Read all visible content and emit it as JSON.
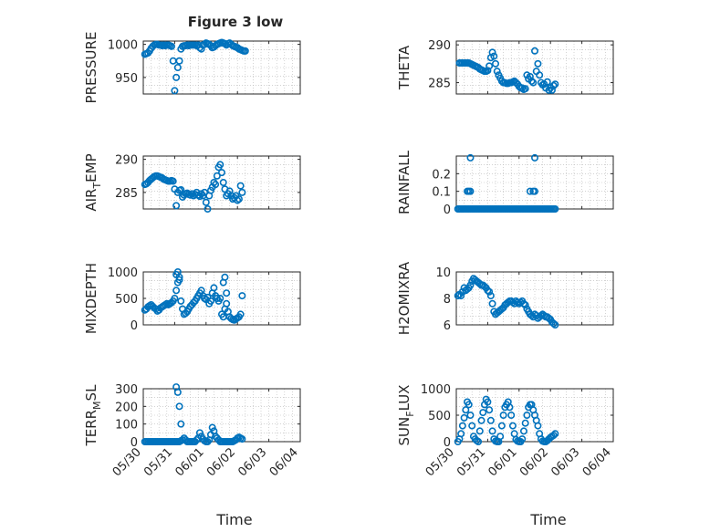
{
  "figure": {
    "title": "Figure 3 low",
    "xlabel": "Time",
    "x_ticks": [
      "05/30",
      "05/31",
      "06/01",
      "06/02",
      "06/03",
      "06/04"
    ],
    "marker_color": "#0072BD",
    "grid": "dotted minor"
  },
  "chart_data": [
    {
      "type": "scatter",
      "id": "PRESSURE",
      "ylabel": "PRESSURE",
      "ylabel_sub": "",
      "ylim": [
        925,
        1005
      ],
      "yticks": [
        950,
        1000
      ],
      "x": [
        0.05,
        0.1,
        0.15,
        0.2,
        0.25,
        0.3,
        0.35,
        0.4,
        0.45,
        0.5,
        0.55,
        0.6,
        0.65,
        0.7,
        0.75,
        0.8,
        0.85,
        0.9,
        0.95,
        1.0,
        1.05,
        1.1,
        1.15,
        1.2,
        1.25,
        1.3,
        1.35,
        1.4,
        1.45,
        1.5,
        1.55,
        1.6,
        1.65,
        1.7,
        1.75,
        1.8,
        1.85,
        1.9,
        1.95,
        2.0,
        2.05,
        2.1,
        2.15,
        2.2,
        2.25,
        2.3,
        2.35,
        2.4,
        2.45,
        2.5,
        2.55,
        2.6,
        2.65,
        2.7,
        2.75,
        2.8,
        2.85,
        2.9,
        2.95,
        3.0,
        3.05,
        3.1,
        3.15,
        3.2,
        3.25
      ],
      "y": [
        985,
        986,
        987,
        990,
        994,
        997,
        999,
        1000,
        1000,
        999,
        999,
        998,
        999,
        998,
        999,
        999,
        998,
        997,
        975,
        930,
        950,
        965,
        975,
        993,
        997,
        998,
        998,
        999,
        998,
        999,
        999,
        999,
        999,
        998,
        999,
        995,
        993,
        999,
        1000,
        1002,
        1001,
        1000,
        998,
        995,
        996,
        998,
        1000,
        1001,
        1002,
        1003,
        1002,
        1001,
        999,
        1001,
        1002,
        1000,
        998,
        997,
        996,
        995,
        993,
        992,
        991,
        990,
        990
      ]
    },
    {
      "type": "scatter",
      "id": "THETA",
      "ylabel": "THETA",
      "ylabel_sub": "",
      "ylim": [
        283.5,
        290.5
      ],
      "yticks": [
        285,
        290
      ],
      "x": [
        0.1,
        0.15,
        0.2,
        0.25,
        0.3,
        0.35,
        0.4,
        0.45,
        0.5,
        0.55,
        0.6,
        0.65,
        0.7,
        0.75,
        0.8,
        0.85,
        0.9,
        0.95,
        1.0,
        1.05,
        1.1,
        1.15,
        1.2,
        1.25,
        1.3,
        1.35,
        1.4,
        1.45,
        1.5,
        1.55,
        1.6,
        1.65,
        1.7,
        1.75,
        1.8,
        1.85,
        1.9,
        1.95,
        2.0,
        2.05,
        2.1,
        2.15,
        2.2,
        2.25,
        2.3,
        2.35,
        2.4,
        2.45,
        2.5,
        2.55,
        2.6,
        2.65,
        2.7,
        2.75,
        2.8,
        2.85,
        2.9,
        2.95,
        3.0,
        3.05,
        3.1,
        3.15
      ],
      "y": [
        287.6,
        287.6,
        287.6,
        287.6,
        287.6,
        287.6,
        287.6,
        287.5,
        287.4,
        287.3,
        287.2,
        287.1,
        287.0,
        286.8,
        286.7,
        286.6,
        286.5,
        286.5,
        286.6,
        287.2,
        288.3,
        289.0,
        288.5,
        287.5,
        286.5,
        286.0,
        285.6,
        285.2,
        285.0,
        285.0,
        284.9,
        284.9,
        285.0,
        285.0,
        285.1,
        285.2,
        285.0,
        284.8,
        284.5,
        284.3,
        284.3,
        284.1,
        284.2,
        286.0,
        285.5,
        285.8,
        285.2,
        285.0,
        289.2,
        286.5,
        287.5,
        286.0,
        285.0,
        284.7,
        284.8,
        284.3,
        285.1,
        284.0,
        284.3,
        284.0,
        284.6,
        284.8
      ]
    },
    {
      "type": "scatter",
      "id": "AIR_TEMP",
      "ylabel": "AIR",
      "ylabel_sub": "T",
      "ylabel_rest": "EMP",
      "ylim": [
        282.5,
        290.5
      ],
      "yticks": [
        285,
        290
      ],
      "x": [
        0.05,
        0.1,
        0.15,
        0.2,
        0.25,
        0.3,
        0.35,
        0.4,
        0.45,
        0.5,
        0.55,
        0.6,
        0.65,
        0.7,
        0.75,
        0.8,
        0.85,
        0.9,
        0.95,
        1.0,
        1.05,
        1.1,
        1.15,
        1.2,
        1.25,
        1.3,
        1.35,
        1.4,
        1.45,
        1.5,
        1.55,
        1.6,
        1.65,
        1.7,
        1.75,
        1.8,
        1.85,
        1.9,
        1.95,
        2.0,
        2.05,
        2.1,
        2.15,
        2.2,
        2.25,
        2.3,
        2.35,
        2.4,
        2.45,
        2.5,
        2.55,
        2.6,
        2.65,
        2.7,
        2.75,
        2.8,
        2.85,
        2.9,
        2.95,
        3.0,
        3.05,
        3.1,
        3.15
      ],
      "y": [
        286.2,
        286.3,
        286.5,
        286.8,
        287.0,
        287.2,
        287.4,
        287.5,
        287.5,
        287.4,
        287.3,
        287.2,
        287.0,
        286.9,
        286.8,
        286.7,
        286.7,
        286.8,
        286.7,
        285.5,
        283.0,
        285.0,
        285.3,
        285.4,
        284.3,
        284.6,
        284.8,
        284.9,
        284.7,
        284.6,
        284.8,
        284.5,
        284.7,
        285.0,
        284.6,
        284.4,
        284.8,
        284.5,
        285.0,
        283.5,
        282.5,
        284.5,
        285.3,
        285.8,
        286.5,
        286.2,
        287.5,
        288.8,
        289.2,
        288.0,
        286.5,
        285.5,
        284.5,
        284.8,
        285.2,
        284.5,
        284.0,
        284.2,
        284.5,
        283.8,
        284.0,
        286.0,
        285.0
      ]
    },
    {
      "type": "scatter",
      "id": "RAINFALL",
      "ylabel": "RAINFALL",
      "ylabel_sub": "",
      "ylim": [
        0,
        0.3
      ],
      "yticks": [
        0,
        0.1,
        0.2
      ],
      "ytick_labels": [
        "0",
        "0.1",
        "0.2"
      ],
      "x": [
        0.05,
        0.1,
        0.15,
        0.2,
        0.25,
        0.3,
        0.35,
        0.4,
        0.45,
        0.5,
        0.55,
        0.6,
        0.65,
        0.7,
        0.75,
        0.8,
        0.85,
        0.9,
        0.95,
        1.0,
        1.05,
        1.1,
        1.15,
        1.2,
        1.25,
        1.3,
        1.35,
        1.4,
        1.45,
        1.5,
        1.55,
        1.6,
        1.65,
        1.7,
        1.75,
        1.8,
        1.85,
        1.9,
        1.95,
        2.0,
        2.05,
        2.1,
        2.15,
        2.2,
        2.25,
        2.3,
        2.35,
        2.4,
        2.45,
        2.5,
        2.55,
        2.6,
        2.65,
        2.7,
        2.75,
        2.8,
        2.85,
        2.9,
        2.95,
        3.0,
        3.05,
        3.1,
        3.15,
        0.35,
        0.4,
        0.45,
        0.45,
        2.35,
        2.45,
        2.5,
        2.5
      ],
      "y": [
        0,
        0,
        0,
        0,
        0,
        0,
        0,
        0,
        0,
        0,
        0,
        0,
        0,
        0,
        0,
        0,
        0,
        0,
        0,
        0,
        0,
        0,
        0,
        0,
        0,
        0,
        0,
        0,
        0,
        0,
        0,
        0,
        0,
        0,
        0,
        0,
        0,
        0,
        0,
        0,
        0,
        0,
        0,
        0,
        0,
        0,
        0,
        0,
        0,
        0,
        0,
        0,
        0,
        0,
        0,
        0,
        0,
        0,
        0,
        0,
        0,
        0,
        0,
        0.1,
        0.1,
        0.1,
        0.29,
        0.1,
        0.1,
        0.1,
        0.29
      ]
    },
    {
      "type": "scatter",
      "id": "MIXDEPTH",
      "ylabel": "MIXDEPTH",
      "ylabel_sub": "",
      "ylim": [
        0,
        1000
      ],
      "yticks": [
        0,
        500,
        1000
      ],
      "x": [
        0.05,
        0.1,
        0.15,
        0.2,
        0.25,
        0.3,
        0.35,
        0.4,
        0.45,
        0.5,
        0.55,
        0.6,
        0.65,
        0.7,
        0.75,
        0.8,
        0.85,
        0.9,
        0.95,
        1.0,
        1.05,
        1.1,
        1.15,
        1.2,
        1.25,
        1.3,
        1.35,
        1.4,
        1.45,
        1.5,
        1.55,
        1.6,
        1.65,
        1.7,
        1.75,
        1.8,
        1.85,
        1.9,
        1.95,
        2.0,
        2.05,
        2.1,
        2.15,
        2.2,
        2.25,
        2.3,
        2.35,
        2.4,
        2.45,
        2.5,
        2.55,
        2.6,
        2.65,
        2.7,
        2.75,
        2.8,
        2.85,
        2.9,
        2.95,
        3.0,
        3.05,
        3.1,
        3.15,
        1.05,
        1.1,
        1.15,
        2.55,
        2.6,
        2.65
      ],
      "y": [
        280,
        300,
        340,
        360,
        380,
        350,
        320,
        300,
        260,
        280,
        320,
        340,
        360,
        380,
        400,
        380,
        400,
        420,
        450,
        500,
        650,
        800,
        850,
        450,
        300,
        200,
        220,
        250,
        300,
        350,
        380,
        420,
        450,
        500,
        550,
        600,
        650,
        550,
        500,
        480,
        520,
        400,
        450,
        600,
        700,
        550,
        500,
        450,
        500,
        200,
        150,
        300,
        400,
        250,
        150,
        120,
        100,
        90,
        110,
        130,
        150,
        200,
        550,
        950,
        1000,
        900,
        800,
        900,
        600
      ]
    },
    {
      "type": "scatter",
      "id": "H2OMIXRA",
      "ylabel": "H2OMIXRA",
      "ylabel_sub": "",
      "ylim": [
        6,
        10
      ],
      "yticks": [
        6,
        8,
        10
      ],
      "x": [
        0.05,
        0.1,
        0.15,
        0.2,
        0.25,
        0.3,
        0.35,
        0.4,
        0.45,
        0.5,
        0.55,
        0.6,
        0.65,
        0.7,
        0.75,
        0.8,
        0.85,
        0.9,
        0.95,
        1.0,
        1.05,
        1.1,
        1.15,
        1.2,
        1.25,
        1.3,
        1.35,
        1.4,
        1.45,
        1.5,
        1.55,
        1.6,
        1.65,
        1.7,
        1.75,
        1.8,
        1.85,
        1.9,
        1.95,
        2.0,
        2.05,
        2.1,
        2.15,
        2.2,
        2.25,
        2.3,
        2.35,
        2.4,
        2.45,
        2.5,
        2.55,
        2.6,
        2.65,
        2.7,
        2.75,
        2.8,
        2.85,
        2.9,
        2.95,
        3.0,
        3.05,
        3.1,
        3.15
      ],
      "y": [
        8.2,
        8.3,
        8.2,
        8.5,
        8.8,
        8.6,
        8.7,
        8.8,
        9.0,
        9.3,
        9.5,
        9.4,
        9.3,
        9.2,
        9.1,
        9.0,
        9.0,
        8.9,
        8.8,
        8.6,
        8.5,
        8.2,
        7.6,
        7.0,
        6.8,
        6.9,
        7.0,
        7.1,
        7.2,
        7.3,
        7.5,
        7.6,
        7.7,
        7.8,
        7.8,
        7.7,
        7.6,
        7.8,
        7.7,
        7.6,
        7.7,
        7.8,
        7.6,
        7.5,
        7.2,
        7.0,
        6.8,
        6.7,
        6.6,
        6.8,
        6.7,
        6.5,
        6.6,
        6.7,
        6.8,
        6.7,
        6.6,
        6.6,
        6.5,
        6.4,
        6.2,
        6.1,
        6.0
      ]
    },
    {
      "type": "scatter",
      "id": "TERR_MSL",
      "ylabel": "TERR",
      "ylabel_sub": "M",
      "ylabel_rest": "SL",
      "ylim": [
        0,
        300
      ],
      "yticks": [
        0,
        100,
        200,
        300
      ],
      "x": [
        0.05,
        0.1,
        0.15,
        0.2,
        0.25,
        0.3,
        0.35,
        0.4,
        0.45,
        0.5,
        0.55,
        0.6,
        0.65,
        0.7,
        0.75,
        0.8,
        0.85,
        0.9,
        0.95,
        1.0,
        1.05,
        1.1,
        1.15,
        1.2,
        1.25,
        1.3,
        1.35,
        1.4,
        1.45,
        1.5,
        1.55,
        1.6,
        1.65,
        1.7,
        1.75,
        1.8,
        1.85,
        1.9,
        1.95,
        2.0,
        2.05,
        2.1,
        2.15,
        2.2,
        2.25,
        2.3,
        2.35,
        2.4,
        2.45,
        2.5,
        2.55,
        2.6,
        2.65,
        2.7,
        2.75,
        2.8,
        2.85,
        2.9,
        2.95,
        3.0,
        3.05,
        3.1,
        3.15,
        1.05,
        1.1,
        1.15,
        1.2
      ],
      "y": [
        0,
        0,
        0,
        0,
        0,
        0,
        0,
        0,
        0,
        0,
        0,
        0,
        0,
        0,
        0,
        0,
        0,
        0,
        0,
        0,
        0,
        0,
        0,
        5,
        10,
        20,
        10,
        0,
        0,
        0,
        0,
        0,
        0,
        10,
        20,
        50,
        30,
        15,
        5,
        0,
        0,
        10,
        40,
        80,
        60,
        30,
        20,
        10,
        0,
        0,
        0,
        0,
        0,
        0,
        0,
        0,
        0,
        5,
        10,
        20,
        25,
        20,
        15,
        310,
        280,
        200,
        100
      ]
    },
    {
      "type": "scatter",
      "id": "SUN_FLUX",
      "ylabel": "SUN",
      "ylabel_sub": "F",
      "ylabel_rest": "LUX",
      "ylim": [
        0,
        1000
      ],
      "yticks": [
        0,
        500,
        1000
      ],
      "x": [
        0.05,
        0.1,
        0.15,
        0.2,
        0.25,
        0.3,
        0.35,
        0.4,
        0.45,
        0.5,
        0.55,
        0.6,
        0.65,
        0.7,
        0.75,
        0.8,
        0.85,
        0.9,
        0.95,
        1.0,
        1.05,
        1.1,
        1.15,
        1.2,
        1.25,
        1.3,
        1.35,
        1.4,
        1.45,
        1.5,
        1.55,
        1.6,
        1.65,
        1.7,
        1.75,
        1.8,
        1.85,
        1.9,
        1.95,
        2.0,
        2.05,
        2.1,
        2.15,
        2.2,
        2.25,
        2.3,
        2.35,
        2.4,
        2.45,
        2.5,
        2.55,
        2.6,
        2.65,
        2.7,
        2.75,
        2.8,
        2.85,
        2.9,
        2.95,
        3.0,
        3.05,
        3.1,
        3.15
      ],
      "y": [
        0,
        50,
        150,
        300,
        450,
        600,
        750,
        700,
        500,
        300,
        100,
        50,
        20,
        0,
        200,
        400,
        550,
        700,
        800,
        750,
        600,
        400,
        200,
        50,
        10,
        0,
        0,
        100,
        300,
        500,
        650,
        700,
        750,
        650,
        500,
        300,
        150,
        40,
        10,
        0,
        0,
        50,
        200,
        350,
        500,
        650,
        700,
        700,
        600,
        500,
        400,
        300,
        150,
        50,
        10,
        0,
        0,
        20,
        50,
        80,
        100,
        120,
        150
      ]
    }
  ]
}
